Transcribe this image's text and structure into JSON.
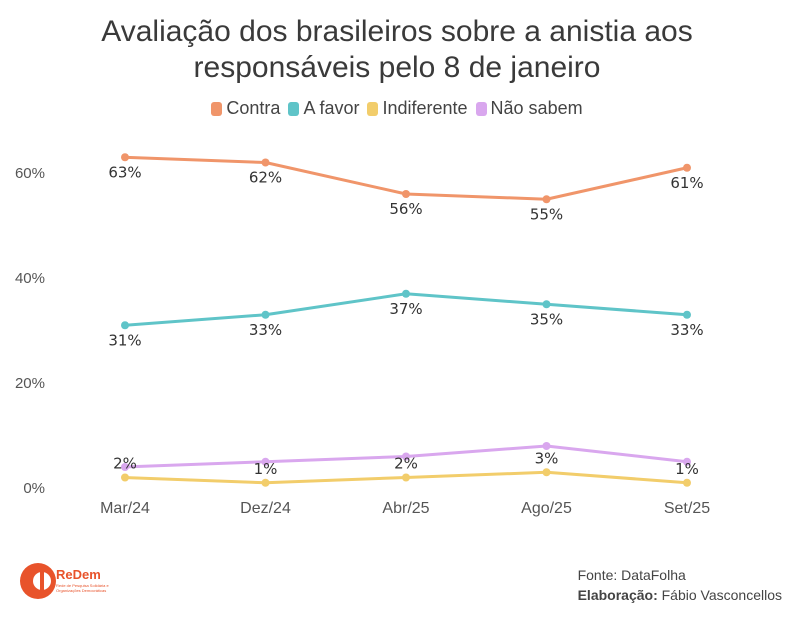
{
  "chart_data": {
    "type": "line",
    "title_lines": [
      "Avaliação dos brasileiros sobre a anistia aos",
      "responsáveis pelo 8 de janeiro"
    ],
    "categories": [
      "Mar/24",
      "Dez/24",
      "Abr/25",
      "Ago/25",
      "Set/25"
    ],
    "ylim": [
      0,
      65
    ],
    "yticks": [
      0,
      20,
      40,
      60
    ],
    "ytick_labels": [
      "0%",
      "20%",
      "40%",
      "60%"
    ],
    "grid": false,
    "legend": "top-center",
    "series": [
      {
        "name": "Contra",
        "color": "#f0956a",
        "values": [
          63,
          62,
          56,
          55,
          61
        ],
        "labels": [
          "63%",
          "62%",
          "56%",
          "55%",
          "61%"
        ],
        "label_pos": "below"
      },
      {
        "name": "A favor",
        "color": "#5fc4c8",
        "values": [
          31,
          33,
          37,
          35,
          33
        ],
        "labels": [
          "31%",
          "33%",
          "37%",
          "35%",
          "33%"
        ],
        "label_pos": "below"
      },
      {
        "name": "Indiferente",
        "color": "#f2cd6b",
        "values": [
          2,
          1,
          2,
          3,
          1
        ],
        "labels": [
          "2%",
          "1%",
          "2%",
          "3%",
          "1%"
        ],
        "label_pos": "above"
      },
      {
        "name": "Não sabem",
        "color": "#d9a7ee",
        "values": [
          4,
          5,
          6,
          8,
          5
        ],
        "labels": [],
        "label_pos": "none"
      }
    ]
  },
  "footer": {
    "source_label": "Fonte: DataFolha",
    "credit_label": "Elaboração:",
    "credit_name": "Fábio Vasconcellos"
  },
  "logo": {
    "name": "ReDem",
    "subtitle": "Rede de Pesquisa Solidária e Organizações Democráticas",
    "color": "#e8532b"
  }
}
